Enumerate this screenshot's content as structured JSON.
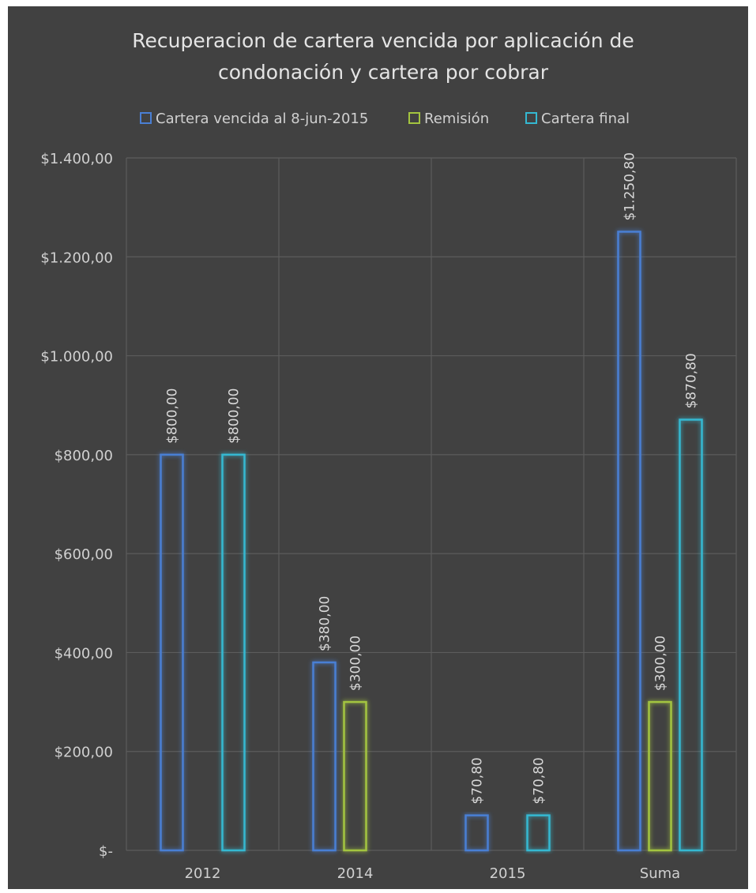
{
  "colors": {
    "background": "#414141",
    "grid": "#5c5c5c",
    "series": [
      "#4a7fd4",
      "#a3c43f",
      "#34b8d1"
    ]
  },
  "chart_data": {
    "type": "bar",
    "title_line1": "Recuperacion de cartera vencida por aplicación de",
    "title_line2": "condonación y cartera por cobrar",
    "categories": [
      "2012",
      "2014",
      "2015",
      "Suma"
    ],
    "series": [
      {
        "name": "Cartera vencida al 8-jun-2015",
        "values": [
          800,
          380,
          70.8,
          1250.8
        ],
        "labels": [
          "$800,00",
          "$380,00",
          "$70,80",
          "$1.250,80"
        ]
      },
      {
        "name": "Remisión",
        "values": [
          null,
          300,
          null,
          300
        ],
        "labels": [
          "",
          "$300,00",
          "",
          "$300,00"
        ]
      },
      {
        "name": "Cartera final",
        "values": [
          800,
          null,
          70.8,
          870.8
        ],
        "labels": [
          "$800,00",
          "",
          "$70,80",
          "$870,80"
        ]
      }
    ],
    "ylim": [
      0,
      1400
    ],
    "yticks": [
      0,
      200,
      400,
      600,
      800,
      1000,
      1200,
      1400
    ],
    "ytick_labels": [
      "$-",
      "$200,00",
      "$400,00",
      "$600,00",
      "$800,00",
      "$1.000,00",
      "$1.200,00",
      "$1.400,00"
    ],
    "grid": true,
    "legend_position": "top"
  }
}
